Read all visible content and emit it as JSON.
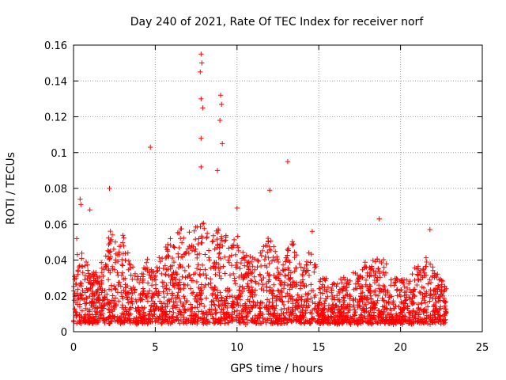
{
  "chart_data": {
    "type": "scatter",
    "title": "Day 240 of 2021, Rate Of TEC Index for receiver norf",
    "xlabel": "GPS time / hours",
    "ylabel": "ROTI / TECUs",
    "xlim": [
      0,
      25
    ],
    "ylim": [
      0,
      0.16
    ],
    "grid": true,
    "marker": "+",
    "series_color": "#ff0000",
    "x_ticks": [
      0,
      5,
      10,
      15,
      20,
      25
    ],
    "y_ticks": [
      0,
      0.02,
      0.04,
      0.06,
      0.08,
      0.1,
      0.12,
      0.14,
      0.16
    ],
    "x_tick_labels": [
      "0",
      "5",
      "10",
      "15",
      "20",
      "25"
    ],
    "y_tick_labels": [
      "0",
      "0.02",
      "0.04",
      "0.06",
      "0.08",
      "0.1",
      "0.12",
      "0.14",
      "0.16"
    ],
    "data_extent_hours": [
      0,
      22.8
    ],
    "notable_points": [
      {
        "x": 7.8,
        "y": 0.155
      },
      {
        "x": 7.85,
        "y": 0.15
      },
      {
        "x": 7.75,
        "y": 0.145
      },
      {
        "x": 7.8,
        "y": 0.13
      },
      {
        "x": 7.9,
        "y": 0.125
      },
      {
        "x": 9.0,
        "y": 0.132
      },
      {
        "x": 9.05,
        "y": 0.127
      },
      {
        "x": 8.95,
        "y": 0.118
      },
      {
        "x": 7.8,
        "y": 0.108
      },
      {
        "x": 9.1,
        "y": 0.105
      },
      {
        "x": 4.7,
        "y": 0.103
      },
      {
        "x": 13.1,
        "y": 0.095
      },
      {
        "x": 7.8,
        "y": 0.092
      },
      {
        "x": 8.8,
        "y": 0.09
      },
      {
        "x": 0.4,
        "y": 0.074
      },
      {
        "x": 0.45,
        "y": 0.071
      },
      {
        "x": 2.2,
        "y": 0.08
      },
      {
        "x": 12.0,
        "y": 0.079
      },
      {
        "x": 10.0,
        "y": 0.069
      },
      {
        "x": 1.0,
        "y": 0.068
      },
      {
        "x": 18.7,
        "y": 0.063
      },
      {
        "x": 21.8,
        "y": 0.057
      },
      {
        "x": 14.6,
        "y": 0.056
      },
      {
        "x": 0.2,
        "y": 0.052
      }
    ],
    "envelope_upper": [
      [
        0.0,
        0.04
      ],
      [
        0.5,
        0.045
      ],
      [
        1.0,
        0.036
      ],
      [
        1.5,
        0.032
      ],
      [
        2.0,
        0.052
      ],
      [
        2.5,
        0.062
      ],
      [
        3.0,
        0.055
      ],
      [
        3.5,
        0.04
      ],
      [
        4.0,
        0.03
      ],
      [
        4.5,
        0.042
      ],
      [
        5.0,
        0.035
      ],
      [
        5.5,
        0.048
      ],
      [
        6.0,
        0.052
      ],
      [
        6.5,
        0.058
      ],
      [
        7.0,
        0.055
      ],
      [
        7.5,
        0.06
      ],
      [
        8.0,
        0.062
      ],
      [
        8.5,
        0.056
      ],
      [
        9.0,
        0.06
      ],
      [
        9.5,
        0.05
      ],
      [
        10.0,
        0.055
      ],
      [
        10.5,
        0.045
      ],
      [
        11.0,
        0.042
      ],
      [
        11.5,
        0.05
      ],
      [
        12.0,
        0.056
      ],
      [
        12.5,
        0.04
      ],
      [
        13.0,
        0.045
      ],
      [
        13.5,
        0.052
      ],
      [
        14.0,
        0.038
      ],
      [
        14.5,
        0.048
      ],
      [
        15.0,
        0.032
      ],
      [
        15.5,
        0.03
      ],
      [
        16.0,
        0.028
      ],
      [
        16.5,
        0.03
      ],
      [
        17.0,
        0.033
      ],
      [
        17.5,
        0.036
      ],
      [
        18.0,
        0.04
      ],
      [
        18.5,
        0.042
      ],
      [
        19.0,
        0.04
      ],
      [
        19.5,
        0.03
      ],
      [
        20.0,
        0.03
      ],
      [
        20.5,
        0.028
      ],
      [
        21.0,
        0.038
      ],
      [
        21.5,
        0.042
      ],
      [
        22.0,
        0.04
      ],
      [
        22.5,
        0.032
      ],
      [
        22.8,
        0.025
      ]
    ],
    "envelope_lower": 0.005,
    "n_points": 2600
  }
}
